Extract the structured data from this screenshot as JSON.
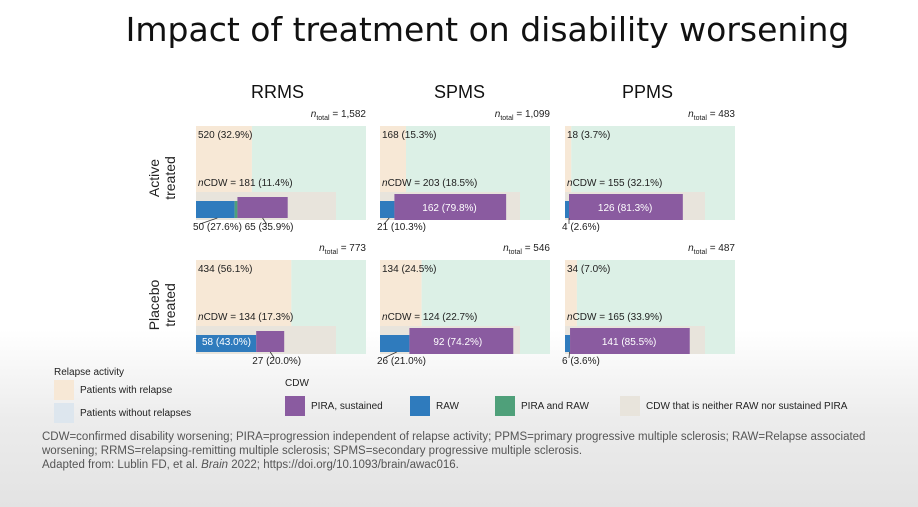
{
  "title": "Impact of treatment on disability worsening",
  "colors": {
    "relapse_bg": "#f7e8d6",
    "no_relapse_bg": "#dcf0e6",
    "pira": "#8a5ba0",
    "raw": "#2f7bbd",
    "pira_raw": "#4fa07a",
    "neither": "#e8e4dc"
  },
  "chart_data": {
    "type": "mosaic",
    "columns": [
      "RRMS",
      "SPMS",
      "PPMS"
    ],
    "rows": [
      "Active treated",
      "Placebo treated"
    ],
    "ncdw_prefix": "nCDW = ",
    "cells": [
      {
        "id": "active-rrms",
        "column": "RRMS",
        "row": "Active treated",
        "n_total": "= 1,582",
        "relapse_frac": 0.329,
        "relapse_label": "520 (32.9%)",
        "cdw_label": "181 (11.4%)",
        "raw_frac": 0.276,
        "pira_raw_frac": 0.02,
        "pira_frac": 0.359,
        "raw_label": "50 (27.6%)",
        "pira_label": "65 (35.9%)"
      },
      {
        "id": "active-spms",
        "column": "SPMS",
        "row": "Active treated",
        "n_total": "= 1,099",
        "relapse_frac": 0.153,
        "relapse_label": "168 (15.3%)",
        "cdw_label": "203 (18.5%)",
        "raw_frac": 0.103,
        "pira_raw_frac": 0,
        "pira_frac": 0.798,
        "raw_label": "21 (10.3%)",
        "pira_label": "162 (79.8%)"
      },
      {
        "id": "active-ppms",
        "column": "PPMS",
        "row": "Active treated",
        "n_total": "= 483",
        "relapse_frac": 0.037,
        "relapse_label": "18 (3.7%)",
        "cdw_label": "155 (32.1%)",
        "raw_frac": 0.026,
        "pira_raw_frac": 0,
        "pira_frac": 0.813,
        "raw_label": "4 (2.6%)",
        "pira_label": "126 (81.3%)"
      },
      {
        "id": "placebo-rrms",
        "column": "RRMS",
        "row": "Placebo treated",
        "n_total": "= 773",
        "relapse_frac": 0.561,
        "relapse_label": "434 (56.1%)",
        "cdw_label": "134 (17.3%)",
        "raw_frac": 0.43,
        "pira_raw_frac": 0,
        "pira_frac": 0.2,
        "raw_label": "58 (43.0%)",
        "pira_label": "27 (20.0%)"
      },
      {
        "id": "placebo-spms",
        "column": "SPMS",
        "row": "Placebo treated",
        "n_total": "= 546",
        "relapse_frac": 0.245,
        "relapse_label": "134 (24.5%)",
        "cdw_label": "124 (22.7%)",
        "raw_frac": 0.21,
        "pira_raw_frac": 0,
        "pira_frac": 0.742,
        "raw_label": "26 (21.0%)",
        "pira_label": "92 (74.2%)"
      },
      {
        "id": "placebo-ppms",
        "column": "PPMS",
        "row": "Placebo treated",
        "n_total": "= 487",
        "relapse_frac": 0.07,
        "relapse_label": "34 (7.0%)",
        "cdw_label": "165 (33.9%)",
        "raw_frac": 0.036,
        "pira_raw_frac": 0,
        "pira_frac": 0.855,
        "raw_label": "6 (3.6%)",
        "pira_label": "141 (85.5%)"
      }
    ]
  },
  "legend": {
    "relapse_title": "Relapse activity",
    "with_relapse": "Patients with relapse",
    "without_relapse": "Patients without relapses",
    "cdw_title": "CDW",
    "pira": "PIRA, sustained",
    "raw": "RAW",
    "pira_raw": "PIRA and RAW",
    "neither": "CDW that is neither RAW nor sustained PIRA"
  },
  "footnote": {
    "line1": "CDW=confirmed disability worsening; PIRA=progression independent of relapse activity; PPMS=primary progressive multiple sclerosis; RAW=Relapse associated worsening; RRMS=relapsing-remitting multiple sclerosis; SPMS=secondary progressive multiple sclerosis.",
    "adapted_prefix": "Adapted from: Lublin FD, et al. ",
    "journal": "Brain",
    "adapted_suffix": " 2022; https://doi.org/10.1093/brain/awac016."
  }
}
